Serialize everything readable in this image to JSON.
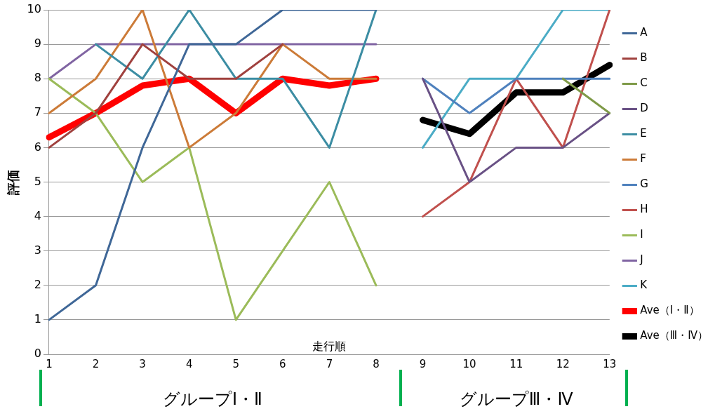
{
  "chart_data": {
    "type": "line",
    "xlabel": "走行順",
    "ylabel": "評価",
    "categories": [
      "1",
      "2",
      "3",
      "4",
      "5",
      "6",
      "7",
      "8",
      "9",
      "10",
      "11",
      "12",
      "13"
    ],
    "ylim": [
      0,
      10
    ],
    "yticks": [
      0,
      1,
      2,
      3,
      4,
      5,
      6,
      7,
      8,
      9,
      10
    ],
    "grid": "y",
    "legend": "right",
    "marker": "none",
    "line_style": "solid",
    "annotations": [
      "グループⅠ・Ⅱ",
      "グループⅢ・Ⅳ"
    ],
    "series": [
      {
        "name": "A",
        "color": "#3f6797",
        "values": [
          1,
          2,
          6,
          9,
          9,
          10,
          10,
          10,
          null,
          null,
          null,
          null,
          null
        ]
      },
      {
        "name": "B",
        "color": "#a0413e",
        "values": [
          6,
          7,
          9,
          8,
          8,
          9,
          null,
          null,
          null,
          null,
          null,
          null,
          null
        ]
      },
      {
        "name": "C",
        "color": "#7f9a48",
        "values": [
          null,
          null,
          null,
          null,
          null,
          null,
          null,
          null,
          null,
          null,
          null,
          8,
          7
        ]
      },
      {
        "name": "D",
        "color": "#695185",
        "values": [
          null,
          null,
          null,
          null,
          null,
          null,
          null,
          null,
          8,
          5,
          6,
          6,
          7
        ]
      },
      {
        "name": "E",
        "color": "#3c8da3",
        "values": [
          null,
          9,
          8,
          10,
          8,
          8,
          6,
          10,
          null,
          null,
          null,
          null,
          null
        ]
      },
      {
        "name": "F",
        "color": "#cc7b38",
        "values": [
          7,
          8,
          10,
          6,
          7,
          9,
          8,
          8,
          null,
          null,
          null,
          null,
          null
        ]
      },
      {
        "name": "G",
        "color": "#4f81bd",
        "values": [
          null,
          null,
          null,
          null,
          null,
          null,
          null,
          null,
          8,
          7,
          8,
          8,
          8
        ]
      },
      {
        "name": "H",
        "color": "#c0504d",
        "values": [
          null,
          null,
          null,
          null,
          null,
          null,
          null,
          null,
          4,
          5,
          8,
          6,
          10
        ]
      },
      {
        "name": "I",
        "color": "#9bbb59",
        "values": [
          8,
          7,
          5,
          6,
          1,
          3,
          5,
          2,
          null,
          null,
          null,
          null,
          null
        ]
      },
      {
        "name": "J",
        "color": "#8064a2",
        "values": [
          8,
          9,
          9,
          9,
          9,
          9,
          9,
          9,
          null,
          null,
          null,
          null,
          null
        ]
      },
      {
        "name": "K",
        "color": "#4bacc6",
        "values": [
          null,
          null,
          null,
          null,
          null,
          null,
          null,
          null,
          6,
          8,
          8,
          10,
          10
        ]
      },
      {
        "name": "Ave（Ⅰ・Ⅱ）",
        "color": "#ff0000",
        "values": [
          6.3,
          7.0,
          7.8,
          8.0,
          7.0,
          8.0,
          7.8,
          8.0,
          null,
          null,
          null,
          null,
          null
        ]
      },
      {
        "name": "Ave（Ⅲ・Ⅳ）",
        "color": "#000000",
        "values": [
          null,
          null,
          null,
          null,
          null,
          null,
          null,
          null,
          6.8,
          6.4,
          7.6,
          7.6,
          8.4
        ]
      }
    ]
  }
}
